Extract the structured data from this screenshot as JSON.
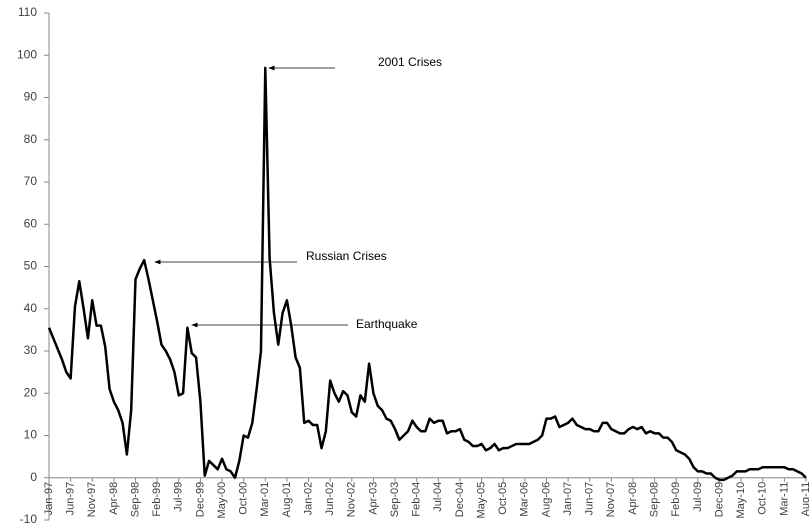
{
  "chart_data": {
    "type": "line",
    "color": "#000000",
    "categories": [
      "Jan-97",
      null,
      null,
      null,
      null,
      "Jun-97",
      null,
      null,
      null,
      null,
      "Nov-97",
      null,
      null,
      null,
      null,
      "Apr-98",
      null,
      null,
      null,
      null,
      "Sep-98",
      null,
      null,
      null,
      null,
      "Feb-99",
      null,
      null,
      null,
      null,
      "Jul-99",
      null,
      null,
      null,
      null,
      "Dec-99",
      null,
      null,
      null,
      null,
      "May-00",
      null,
      null,
      null,
      null,
      "Oct-00",
      null,
      null,
      null,
      null,
      "Mar-01",
      null,
      null,
      null,
      null,
      "Aug-01",
      null,
      null,
      null,
      null,
      "Jan-02",
      null,
      null,
      null,
      null,
      "Jun-02",
      null,
      null,
      null,
      null,
      "Nov-02",
      null,
      null,
      null,
      null,
      "Apr-03",
      null,
      null,
      null,
      null,
      "Sep-03",
      null,
      null,
      null,
      null,
      "Feb-04",
      null,
      null,
      null,
      null,
      "Jul-04",
      null,
      null,
      null,
      null,
      "Dec-04",
      null,
      null,
      null,
      null,
      "May-05",
      null,
      null,
      null,
      null,
      "Oct-05",
      null,
      null,
      null,
      null,
      "Mar-06",
      null,
      null,
      null,
      null,
      "Aug-06",
      null,
      null,
      null,
      null,
      "Jan-07",
      null,
      null,
      null,
      null,
      "Jun-07",
      null,
      null,
      null,
      null,
      "Nov-07",
      null,
      null,
      null,
      null,
      "Apr-08",
      null,
      null,
      null,
      null,
      "Sep-08",
      null,
      null,
      null,
      null,
      "Feb-09",
      null,
      null,
      null,
      null,
      "Jul-09",
      null,
      null,
      null,
      null,
      "Dec-09",
      null,
      null,
      null,
      null,
      "May-10",
      null,
      null,
      null,
      null,
      "Oct-10",
      null,
      null,
      null,
      null,
      "Mar-11",
      null,
      null,
      null,
      null,
      "Aug-11"
    ],
    "values": [
      35.5,
      33,
      30.5,
      28,
      25,
      23.5,
      40.5,
      46.5,
      40,
      33,
      42,
      36,
      36,
      31,
      21,
      18,
      16,
      13,
      5.5,
      16,
      47,
      49.5,
      51.5,
      47,
      42,
      37,
      31.5,
      30,
      28,
      25,
      19.5,
      20,
      35.5,
      29.5,
      28.5,
      18,
      0.5,
      4,
      3,
      2,
      4.5,
      2,
      1.5,
      0,
      4,
      10,
      9.5,
      13,
      21,
      30,
      97,
      52,
      39,
      31.5,
      39,
      42,
      36,
      28.5,
      26,
      13,
      13.5,
      12.5,
      12.5,
      7,
      11,
      23,
      20,
      18,
      20.5,
      19.5,
      15.5,
      14.5,
      19.5,
      18,
      27,
      20,
      17,
      16,
      14,
      13.5,
      11.5,
      9,
      10,
      11,
      13.5,
      12,
      11,
      11,
      14,
      13,
      13.5,
      13.5,
      10.5,
      11,
      11,
      11.5,
      9,
      8.5,
      7.5,
      7.5,
      8,
      6.5,
      7,
      8,
      6.5,
      7,
      7,
      7.5,
      8,
      8,
      8,
      8,
      8.5,
      9,
      10,
      14,
      14,
      14.5,
      12,
      12.5,
      13,
      14,
      12.5,
      12,
      11.5,
      11.5,
      11,
      11,
      13,
      13,
      11.5,
      11,
      10.5,
      10.5,
      11.5,
      12,
      11.5,
      12,
      10.5,
      11,
      10.5,
      10.5,
      9.5,
      9.5,
      8.5,
      6.5,
      6,
      5.5,
      4.5,
      2.5,
      1.5,
      1.5,
      1,
      1,
      0,
      -0.5,
      -0.5,
      0,
      0.5,
      1.5,
      1.5,
      1.5,
      2,
      2,
      2,
      2.5,
      2.5,
      2.5,
      2.5,
      2.5,
      2.5,
      2,
      2,
      1.5,
      1,
      0
    ],
    "ylim": [
      -10,
      110
    ],
    "yticks": [
      -10,
      0,
      10,
      20,
      30,
      40,
      50,
      60,
      70,
      80,
      90,
      100,
      110
    ],
    "annotations": [
      "2001 Crises",
      "Russian Crises",
      "Earthquake"
    ]
  }
}
